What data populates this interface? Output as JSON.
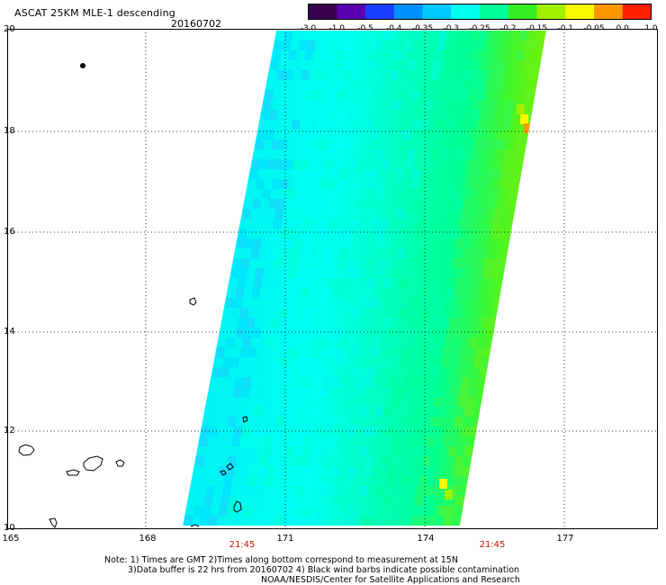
{
  "title": "ASCAT 25KM MLE-1 descending",
  "date": "20160702",
  "colorbar": {
    "ticks": [
      "-3.0",
      "-1.0",
      "-0.5",
      "-0.4",
      "-0.35",
      "-0.3",
      "-0.25",
      "-0.2",
      "-0.15",
      "-0.1",
      "-0.05",
      "0.0",
      "1.0"
    ],
    "colors": [
      "#3a0050",
      "#5a00b0",
      "#1a40ff",
      "#0090ff",
      "#00c8ff",
      "#00ffee",
      "#00ff99",
      "#33ee22",
      "#a0f000",
      "#f8f800",
      "#ff9800",
      "#ff2000"
    ]
  },
  "map": {
    "y_ticks": [
      "20",
      "18",
      "16",
      "14",
      "12",
      "10"
    ],
    "x_ticks": [
      "165",
      "168",
      "171",
      "174",
      "177"
    ],
    "time_labels": [
      "21:45",
      "21:45"
    ],
    "lat_range": [
      10,
      20
    ],
    "lon_range": [
      165,
      179
    ]
  },
  "notes": {
    "line1": "Note: 1) Times are GMT 2)Times along bottom correspond to measurement at 15N",
    "line2": "3)Data buffer is 22 hrs from 20160702 4) Black wind barbs indicate possible contamination",
    "line3": "NOAA/NESDIS/Center for Satellite Applications and Research"
  }
}
